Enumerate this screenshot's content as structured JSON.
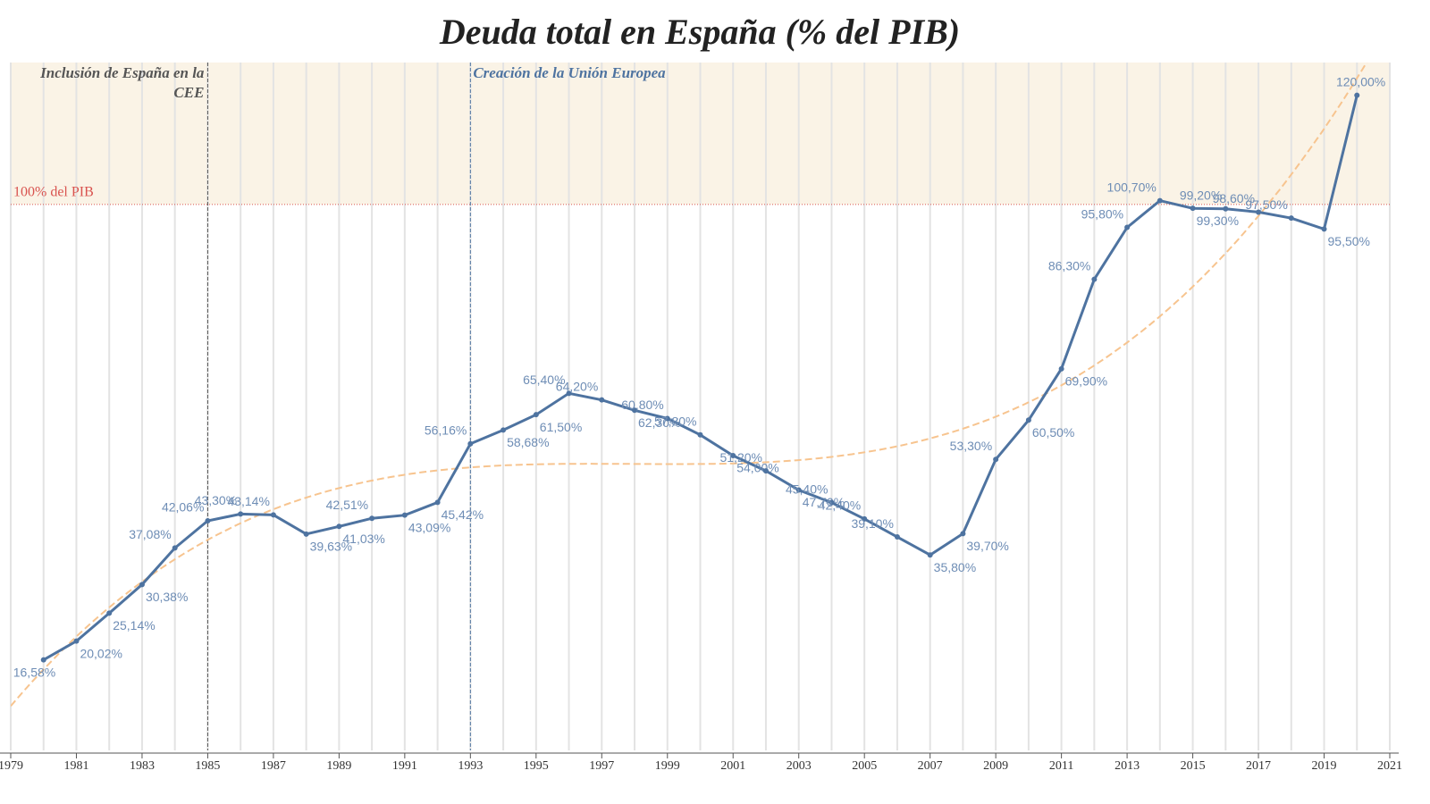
{
  "chart_data": {
    "type": "line",
    "title": "Deuda total en España (% del PIB)",
    "x": [
      1980,
      1981,
      1982,
      1983,
      1984,
      1985,
      1986,
      1987,
      1988,
      1989,
      1990,
      1991,
      1992,
      1993,
      1994,
      1995,
      1996,
      1997,
      1998,
      1999,
      2000,
      2001,
      2002,
      2003,
      2004,
      2005,
      2006,
      2007,
      2008,
      2009,
      2010,
      2011,
      2012,
      2013,
      2014,
      2015,
      2016,
      2017,
      2018,
      2019,
      2020
    ],
    "series": [
      {
        "name": "Deuda total",
        "color": "#4e73a0",
        "values": [
          16.58,
          20.02,
          25.14,
          30.38,
          37.08,
          42.06,
          43.3,
          43.14,
          39.63,
          41.03,
          42.51,
          43.09,
          45.42,
          56.16,
          58.68,
          61.5,
          65.4,
          64.2,
          62.3,
          60.8,
          57.8,
          54.0,
          51.2,
          47.7,
          45.4,
          42.4,
          39.1,
          35.8,
          39.7,
          53.3,
          60.5,
          69.9,
          86.3,
          95.8,
          100.7,
          99.3,
          99.2,
          98.6,
          97.5,
          95.5,
          120.0
        ],
        "value_labels": [
          "16,58%",
          "20,02%",
          "25,14%",
          "30,38%",
          "37,08%",
          "42,06%",
          "43,30%",
          "43,14%",
          "39,63%",
          "41,03%",
          "42,51%",
          "43,09%",
          "45,42%",
          "56,16%",
          "58,68%",
          "61,50%",
          "65,40%",
          "64,20%",
          "62,30%",
          "60,80%",
          "57,80%",
          "54,00%",
          "51,20%",
          "47,70%",
          "45,40%",
          "42,40%",
          "39,10%",
          "35,80%",
          "39,70%",
          "53,30%",
          "60,50%",
          "69,90%",
          "86,30%",
          "95,80%",
          "100,70%",
          "99,30%",
          "99,20%",
          "98,60%",
          "97,50%",
          "95,50%",
          "120,00%"
        ]
      }
    ],
    "xlim": [
      1979,
      2021
    ],
    "xticks": [
      1979,
      1981,
      1983,
      1985,
      1987,
      1989,
      1991,
      1993,
      1995,
      1997,
      1999,
      2001,
      2003,
      2005,
      2007,
      2009,
      2011,
      2013,
      2015,
      2017,
      2019,
      2021
    ],
    "ylim": [
      0,
      126
    ],
    "reference_line": {
      "value": 100,
      "label": "100% del PIB",
      "color": "#d9534f",
      "band_color": "#faf3e6"
    },
    "annotations": [
      {
        "x": 1985,
        "label": "Inclusión de España en la CEE",
        "color": "#555"
      },
      {
        "x": 1993,
        "label": "Creación de la Unión Europea",
        "color": "#4e73a0"
      }
    ],
    "trendline": {
      "type": "polynomial",
      "degree": 3,
      "color": "#f7c48f"
    }
  }
}
